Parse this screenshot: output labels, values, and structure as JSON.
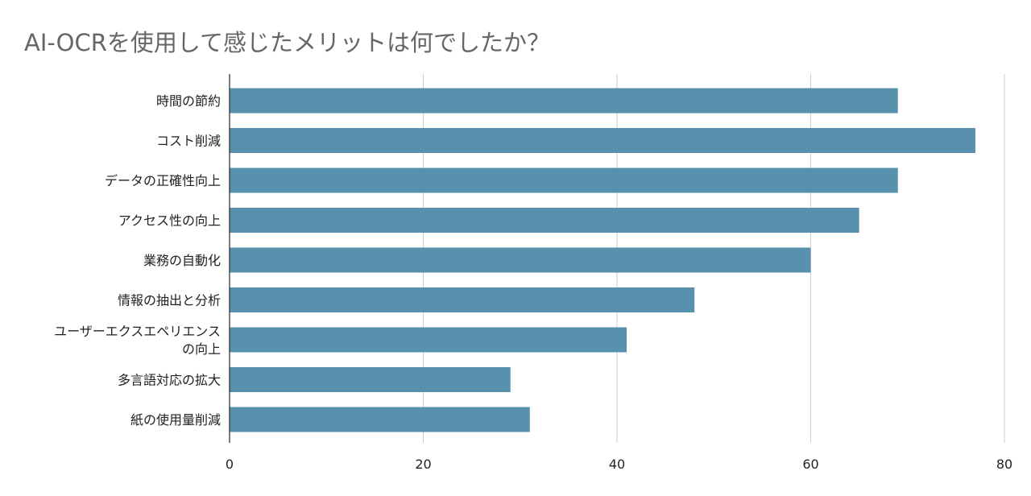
{
  "chart_data": {
    "type": "bar",
    "orientation": "horizontal",
    "title": "AI-OCRを使用して感じたメリットは何でしたか？",
    "xlabel": "",
    "ylabel": "",
    "categories": [
      "時間の節約",
      "コスト削減",
      "データの正確性向上",
      "アクセス性の向上",
      "業務の自動化",
      "情報の抽出と分析",
      "ユーザーエクスエペリエンスの向上",
      "多言語対応の拡大",
      "紙の使用量削減"
    ],
    "category_lines": [
      [
        "時間の節約"
      ],
      [
        "コスト削減"
      ],
      [
        "データの正確性向上"
      ],
      [
        "アクセス性の向上"
      ],
      [
        "業務の自動化"
      ],
      [
        "情報の抽出と分析"
      ],
      [
        "ユーザーエクスエペリエンス",
        "の向上"
      ],
      [
        "多言語対応の拡大"
      ],
      [
        "紙の使用量削減"
      ]
    ],
    "values": [
      69,
      77,
      69,
      65,
      60,
      48,
      41,
      29,
      31
    ],
    "xlim": [
      0,
      80
    ],
    "xticks": [
      0,
      20,
      40,
      60,
      80
    ],
    "grid": true,
    "legend": "none",
    "colors": {
      "bar": "#5791ae",
      "grid": "#cccccc",
      "axis": "#333333",
      "title": "#666666"
    }
  }
}
